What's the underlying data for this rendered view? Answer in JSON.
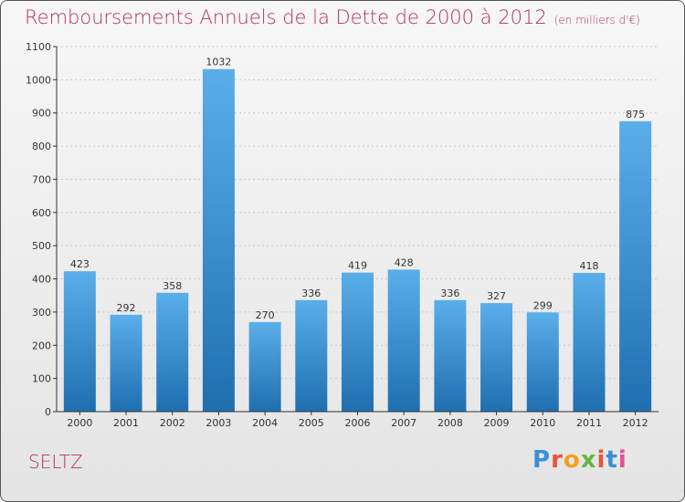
{
  "header": {
    "title": "Remboursements Annuels de la Dette de 2000 à 2012",
    "subtitle": "(en milliers d'€)"
  },
  "footer": {
    "commune": "SELTZ",
    "logo_text": "Proxiti"
  },
  "colors": {
    "title": "#b5315c",
    "bar_light": "#5aaeea",
    "bar_dark": "#1f6fb0",
    "grid": "#c8c8c8",
    "axis": "#333333",
    "logo_letters": [
      "#3a8fd6",
      "#e8553a",
      "#f0a020",
      "#69b545",
      "#e8553a",
      "#3a8fd6",
      "#e84e9a"
    ]
  },
  "chart_data": {
    "type": "bar",
    "categories": [
      "2000",
      "2001",
      "2002",
      "2003",
      "2004",
      "2005",
      "2006",
      "2007",
      "2008",
      "2009",
      "2010",
      "2011",
      "2012"
    ],
    "values": [
      423,
      292,
      358,
      1032,
      270,
      336,
      419,
      428,
      336,
      327,
      299,
      418,
      875
    ],
    "title": "Remboursements Annuels de la Dette de 2000 à 2012",
    "subtitle": "(en milliers d'€)",
    "xlabel": "",
    "ylabel": "",
    "ylim": [
      0,
      1100
    ],
    "yticks": [
      0,
      100,
      200,
      300,
      400,
      500,
      600,
      700,
      800,
      900,
      1000,
      1100
    ],
    "grid": "horizontal dotted",
    "legend": "none",
    "data_labels": true
  }
}
